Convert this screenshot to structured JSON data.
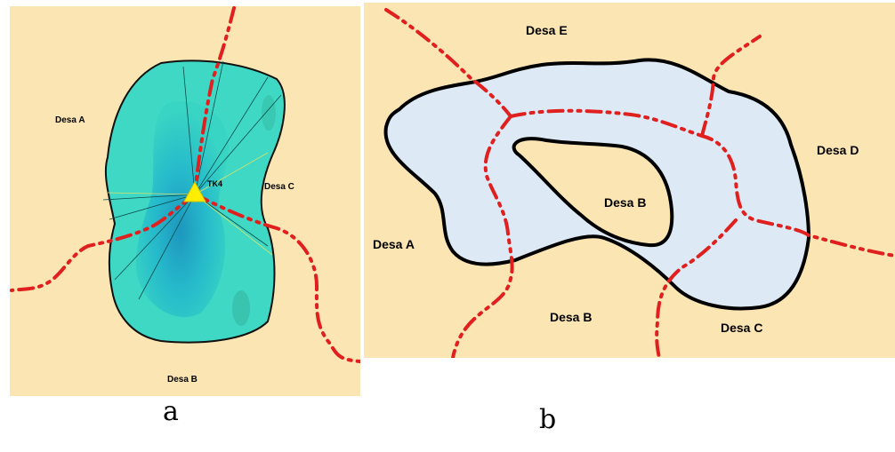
{
  "panels": {
    "a": {
      "caption": "a",
      "labels": {
        "village_a": "Desa A",
        "village_b": "Desa B",
        "village_c": "Desa C",
        "station": "TK4"
      }
    },
    "b": {
      "caption": "b",
      "labels": {
        "village_a": "Desa A",
        "village_b_center": "Desa B",
        "village_b_south": "Desa B",
        "village_c": "Desa C",
        "village_d": "Desa D",
        "village_e": "Desa E"
      }
    }
  },
  "colors": {
    "land": "#fbe6b3",
    "reservoir_teal": "#3fd8c4",
    "reservoir_deep": "#1fa3c8",
    "reservoir_light": "#dde9f4",
    "boundary_line": "#e01f1f",
    "station_marker": "#ffee00"
  }
}
